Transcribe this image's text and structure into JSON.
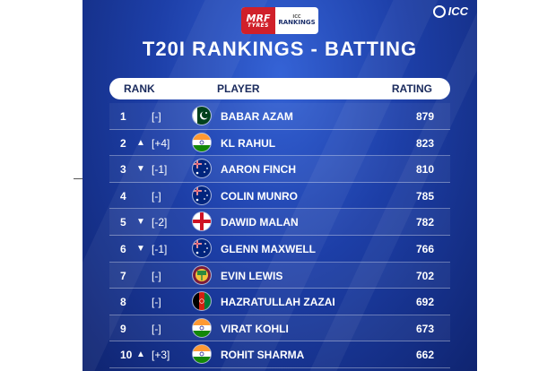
{
  "sponsor": {
    "mrf_big": "MRF",
    "mrf_small": "TYRES",
    "small": "ICC",
    "main": "RANKINGS"
  },
  "brand": {
    "label": "ICC"
  },
  "title": "T20I RANKINGS - BATTING",
  "columns": {
    "rank": "RANK",
    "player": "PLAYER",
    "rating": "RATING"
  },
  "rows": [
    {
      "rank": "1",
      "arrow": "",
      "movement": "[-]",
      "flag": "pakistan-flag-icon",
      "player": "BABAR AZAM",
      "rating": "879"
    },
    {
      "rank": "2",
      "arrow": "▲",
      "movement": "[+4]",
      "flag": "india-flag-icon",
      "player": "KL RAHUL",
      "rating": "823"
    },
    {
      "rank": "3",
      "arrow": "▼",
      "movement": "[-1]",
      "flag": "australia-flag-icon",
      "player": "AARON FINCH",
      "rating": "810"
    },
    {
      "rank": "4",
      "arrow": "",
      "movement": "[-]",
      "flag": "australia-flag-icon",
      "player": "COLIN MUNRO",
      "rating": "785"
    },
    {
      "rank": "5",
      "arrow": "▼",
      "movement": "[-2]",
      "flag": "england-flag-icon",
      "player": "DAWID MALAN",
      "rating": "782"
    },
    {
      "rank": "6",
      "arrow": "▼",
      "movement": "[-1]",
      "flag": "australia-flag-icon",
      "player": "GLENN MAXWELL",
      "rating": "766"
    },
    {
      "rank": "7",
      "arrow": "",
      "movement": "[-]",
      "flag": "west-indies-flag-icon",
      "player": "EVIN LEWIS",
      "rating": "702"
    },
    {
      "rank": "8",
      "arrow": "",
      "movement": "[-]",
      "flag": "afghanistan-flag-icon",
      "player": "HAZRATULLAH ZAZAI",
      "rating": "692"
    },
    {
      "rank": "9",
      "arrow": "",
      "movement": "[-]",
      "flag": "india-flag-icon",
      "player": "VIRAT KOHLI",
      "rating": "673"
    },
    {
      "rank": "10",
      "arrow": "▲",
      "movement": "[+3]",
      "flag": "india-flag-icon",
      "player": "ROHIT SHARMA",
      "rating": "662"
    }
  ],
  "colors": {
    "background": "#1d3fa8",
    "text": "#ffffff",
    "header_text": "#1a2a5c",
    "sponsor_red": "#d0202a"
  }
}
